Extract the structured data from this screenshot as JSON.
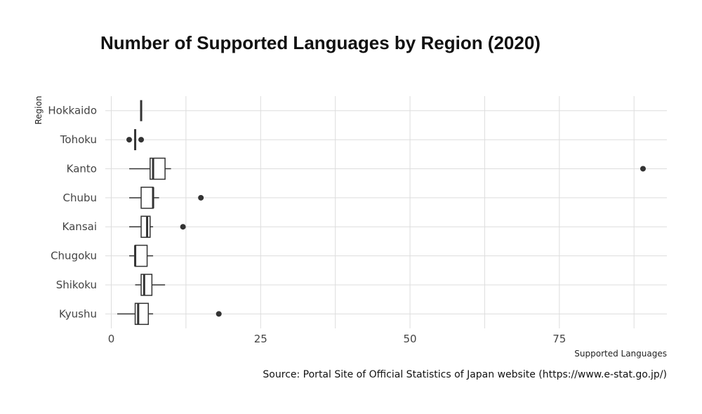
{
  "chart_data": {
    "type": "boxplot",
    "title": "Number of Supported Languages by Region (2020)",
    "xlabel": "Supported Languages",
    "ylabel": "Region",
    "caption": "Source: Portal Site of Official Statistics of Japan website (https://www.e-stat.go.jp/)",
    "xlim": [
      -1,
      93
    ],
    "xticks": [
      0,
      25,
      50,
      75
    ],
    "xtick_labels": [
      "0",
      "25",
      "50",
      "75"
    ],
    "grid": true,
    "colors": {
      "box": "#333333",
      "grid": "#dddddd"
    },
    "categories": [
      "Hokkaido",
      "Tohoku",
      "Kanto",
      "Chubu",
      "Kansai",
      "Chugoku",
      "Shikoku",
      "Kyushu"
    ],
    "boxes": [
      {
        "region": "Hokkaido",
        "whisker_low": 5,
        "q1": 5,
        "median": 5,
        "q3": 5,
        "whisker_high": 5,
        "outliers": []
      },
      {
        "region": "Tohoku",
        "whisker_low": 4,
        "q1": 4,
        "median": 4,
        "q3": 4,
        "whisker_high": 4,
        "outliers": [
          3,
          5
        ]
      },
      {
        "region": "Kanto",
        "whisker_low": 3,
        "q1": 6.5,
        "median": 7,
        "q3": 9,
        "whisker_high": 10,
        "outliers": [
          89
        ]
      },
      {
        "region": "Chubu",
        "whisker_low": 3,
        "q1": 5,
        "median": 7,
        "q3": 7,
        "whisker_high": 8,
        "outliers": [
          15
        ]
      },
      {
        "region": "Kansai",
        "whisker_low": 3,
        "q1": 5,
        "median": 6,
        "q3": 6.5,
        "whisker_high": 7,
        "outliers": [
          12
        ]
      },
      {
        "region": "Chugoku",
        "whisker_low": 3,
        "q1": 4,
        "median": 4,
        "q3": 6,
        "whisker_high": 7,
        "outliers": []
      },
      {
        "region": "Shikoku",
        "whisker_low": 4,
        "q1": 5,
        "median": 5.5,
        "q3": 6.8,
        "whisker_high": 9,
        "outliers": []
      },
      {
        "region": "Kyushu",
        "whisker_low": 1,
        "q1": 4,
        "median": 4.5,
        "q3": 6.2,
        "whisker_high": 7,
        "outliers": [
          18
        ]
      }
    ]
  }
}
